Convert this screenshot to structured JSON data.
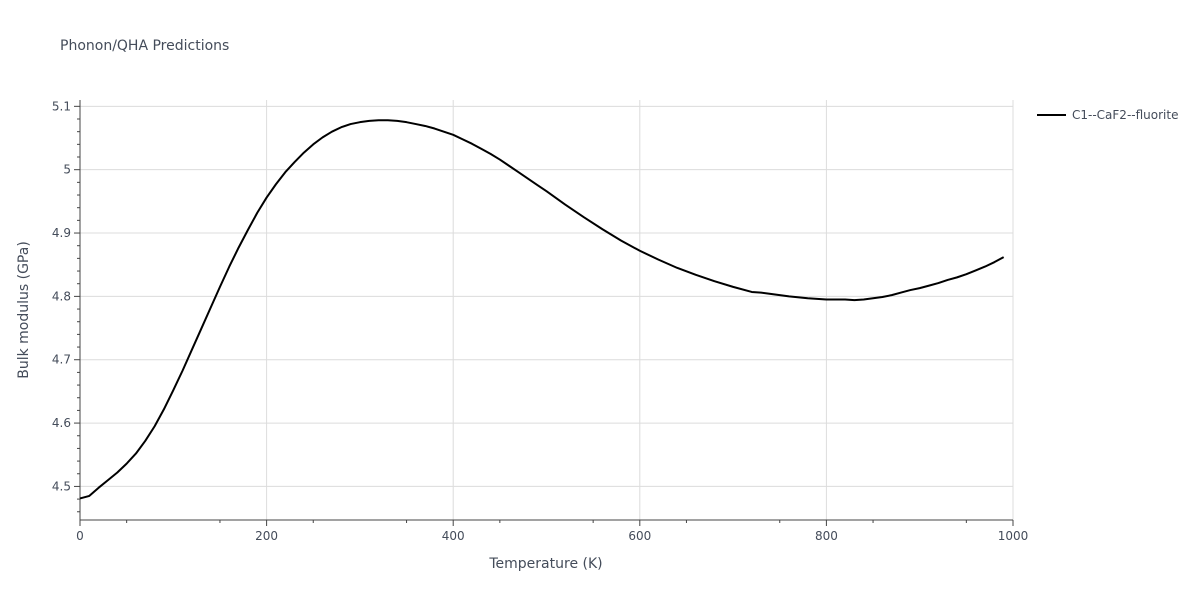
{
  "chart_data": {
    "type": "line",
    "title": "Phonon/QHA Predictions",
    "xlabel": "Temperature (K)",
    "ylabel": "Bulk modulus (GPa)",
    "xlim": [
      0,
      1000
    ],
    "ylim": [
      4.447,
      5.11
    ],
    "x_ticks": [
      0,
      200,
      400,
      600,
      800,
      1000
    ],
    "x_tick_labels": [
      "0",
      "200",
      "400",
      "600",
      "800",
      "1000"
    ],
    "y_ticks": [
      4.5,
      4.6,
      4.7,
      4.8,
      4.9,
      5.0,
      5.1
    ],
    "y_tick_labels": [
      "4.5",
      "4.6",
      "4.7",
      "4.8",
      "4.9",
      "5",
      "5.1"
    ],
    "grid": true,
    "legend_position": "top-right",
    "series": [
      {
        "name": "C1--CaF2--fluorite",
        "color": "#000000",
        "x": [
          0,
          10,
          20,
          30,
          40,
          50,
          60,
          70,
          80,
          90,
          100,
          110,
          120,
          130,
          140,
          150,
          160,
          170,
          180,
          190,
          200,
          210,
          220,
          230,
          240,
          250,
          260,
          270,
          280,
          290,
          300,
          310,
          320,
          330,
          340,
          350,
          360,
          370,
          380,
          390,
          400,
          410,
          420,
          430,
          440,
          450,
          460,
          470,
          480,
          490,
          500,
          520,
          540,
          560,
          580,
          600,
          620,
          640,
          660,
          680,
          700,
          720,
          730,
          740,
          760,
          780,
          790,
          800,
          810,
          820,
          830,
          840,
          850,
          860,
          870,
          880,
          890,
          900,
          910,
          920,
          930,
          940,
          950,
          960,
          970,
          980,
          990
        ],
        "y": [
          4.481,
          4.485,
          4.498,
          4.51,
          4.522,
          4.536,
          4.552,
          4.572,
          4.595,
          4.622,
          4.652,
          4.683,
          4.716,
          4.749,
          4.782,
          4.815,
          4.847,
          4.877,
          4.905,
          4.932,
          4.956,
          4.977,
          4.996,
          5.012,
          5.027,
          5.04,
          5.051,
          5.06,
          5.067,
          5.072,
          5.075,
          5.077,
          5.078,
          5.078,
          5.077,
          5.075,
          5.072,
          5.069,
          5.065,
          5.06,
          5.055,
          5.048,
          5.041,
          5.033,
          5.025,
          5.016,
          5.006,
          4.996,
          4.986,
          4.976,
          4.966,
          4.945,
          4.925,
          4.906,
          4.888,
          4.872,
          4.858,
          4.845,
          4.834,
          4.824,
          4.815,
          4.807,
          4.806,
          4.804,
          4.8,
          4.797,
          4.796,
          4.795,
          4.795,
          4.795,
          4.794,
          4.795,
          4.797,
          4.799,
          4.802,
          4.806,
          4.81,
          4.813,
          4.817,
          4.821,
          4.826,
          4.83,
          4.835,
          4.841,
          4.847,
          4.854,
          4.862
        ]
      }
    ]
  }
}
